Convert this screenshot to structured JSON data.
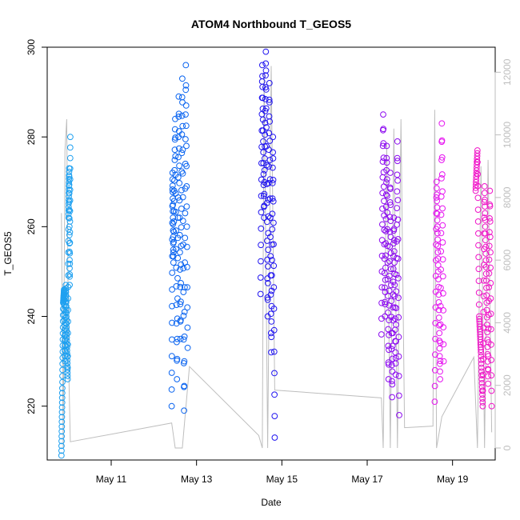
{
  "chart_data": {
    "type": "scatter",
    "title": "ATOM4 Northbound T_GEOS5",
    "xlabel": "Date",
    "ylabel": "T_GEOS5",
    "x_tick_labels": [
      "May 11",
      "May 13",
      "May 15",
      "May 17",
      "May 19"
    ],
    "y_tick_labels": [
      "220",
      "240",
      "260",
      "280",
      "300"
    ],
    "y2_tick_labels": [
      "0",
      "2000",
      "4000",
      "6000",
      "8000",
      "10000",
      "12000"
    ],
    "xlim": [
      "2018-05-09 12:00",
      "2018-05-20 00:00"
    ],
    "ylim": [
      208,
      300
    ],
    "y2lim": [
      0,
      12800
    ],
    "grid": false,
    "secondary_axis_color": "#bebebe",
    "series": [
      {
        "color": "#1ea0f0",
        "points": [
          [
            "2018-05-09 20:00",
            209
          ],
          [
            "2018-05-09 20:30",
            224
          ],
          [
            "2018-05-09 21:00",
            243
          ],
          [
            "2018-05-09 21:30",
            246
          ],
          [
            "2018-05-09 22:00",
            230
          ],
          [
            "2018-05-09 22:30",
            247
          ],
          [
            "2018-05-09 23:00",
            236
          ],
          [
            "2018-05-09 23:30",
            226
          ],
          [
            "2018-05-10 00:00",
            262
          ],
          [
            "2018-05-10 00:20",
            273
          ],
          [
            "2018-05-10 00:40",
            247
          ],
          [
            "2018-05-10 01:00",
            280
          ]
        ]
      },
      {
        "color": "#0a64f0",
        "points": [
          [
            "2018-05-12 10:00",
            220
          ],
          [
            "2018-05-12 10:30",
            272
          ],
          [
            "2018-05-12 11:00",
            252
          ],
          [
            "2018-05-12 12:00",
            284
          ],
          [
            "2018-05-12 13:00",
            226
          ],
          [
            "2018-05-12 14:00",
            289
          ],
          [
            "2018-05-12 15:00",
            235
          ],
          [
            "2018-05-12 16:00",
            293
          ],
          [
            "2018-05-12 17:00",
            219
          ],
          [
            "2018-05-12 18:00",
            296
          ],
          [
            "2018-05-12 19:00",
            233
          ]
        ]
      },
      {
        "color": "#2014f0",
        "points": [
          [
            "2018-05-14 12:00",
            245
          ],
          [
            "2018-05-14 13:00",
            296
          ],
          [
            "2018-05-14 14:00",
            262
          ],
          [
            "2018-05-14 15:00",
            299
          ],
          [
            "2018-05-14 16:00",
            240
          ],
          [
            "2018-05-14 17:00",
            292
          ],
          [
            "2018-05-14 18:00",
            232
          ],
          [
            "2018-05-14 19:00",
            280
          ],
          [
            "2018-05-14 20:00",
            213
          ]
        ]
      },
      {
        "color": "#8c0af0",
        "points": [
          [
            "2018-05-17 08:00",
            236
          ],
          [
            "2018-05-17 09:00",
            285
          ],
          [
            "2018-05-17 10:00",
            240
          ],
          [
            "2018-05-17 11:00",
            278
          ],
          [
            "2018-05-17 12:00",
            226
          ],
          [
            "2018-05-17 13:00",
            272
          ],
          [
            "2018-05-17 14:00",
            222
          ],
          [
            "2018-05-17 15:00",
            262
          ],
          [
            "2018-05-17 16:00",
            227
          ],
          [
            "2018-05-17 17:00",
            279
          ],
          [
            "2018-05-17 18:00",
            218
          ]
        ]
      },
      {
        "color": "#e614f0",
        "points": [
          [
            "2018-05-18 14:00",
            221
          ],
          [
            "2018-05-18 15:00",
            270
          ],
          [
            "2018-05-18 16:00",
            250
          ],
          [
            "2018-05-18 17:00",
            226
          ],
          [
            "2018-05-18 18:00",
            283
          ],
          [
            "2018-05-18 19:00",
            230
          ]
        ]
      },
      {
        "color": "#f014c8",
        "points": [
          [
            "2018-05-19 13:00",
            268
          ],
          [
            "2018-05-19 14:00",
            277
          ],
          [
            "2018-05-19 15:00",
            240
          ],
          [
            "2018-05-19 16:00",
            232
          ],
          [
            "2018-05-19 17:00",
            220
          ],
          [
            "2018-05-19 18:00",
            269
          ],
          [
            "2018-05-19 19:00",
            248
          ],
          [
            "2018-05-19 20:00",
            225
          ],
          [
            "2018-05-19 21:00",
            268
          ],
          [
            "2018-05-19 22:00",
            220
          ]
        ]
      }
    ],
    "secondary_line": {
      "color": "#bebebe",
      "points": [
        [
          "2018-05-09 20:00",
          7500
        ],
        [
          "2018-05-09 21:00",
          0
        ],
        [
          "2018-05-09 22:00",
          9500
        ],
        [
          "2018-05-09 23:00",
          10500
        ],
        [
          "2018-05-10 00:00",
          2800
        ],
        [
          "2018-05-10 01:00",
          200
        ],
        [
          "2018-05-12 10:00",
          800
        ],
        [
          "2018-05-12 12:00",
          0
        ],
        [
          "2018-05-12 14:00",
          0
        ],
        [
          "2018-05-12 16:00",
          0
        ],
        [
          "2018-05-12 20:00",
          2600
        ],
        [
          "2018-05-14 11:00",
          400
        ],
        [
          "2018-05-14 13:00",
          0
        ],
        [
          "2018-05-14 14:00",
          12000
        ],
        [
          "2018-05-14 16:00",
          0
        ],
        [
          "2018-05-14 18:00",
          12200
        ],
        [
          "2018-05-14 20:00",
          1850
        ],
        [
          "2018-05-17 08:00",
          1600
        ],
        [
          "2018-05-17 09:00",
          0
        ],
        [
          "2018-05-17 11:00",
          9700
        ],
        [
          "2018-05-17 13:00",
          0
        ],
        [
          "2018-05-17 15:00",
          10200
        ],
        [
          "2018-05-17 17:00",
          0
        ],
        [
          "2018-05-17 19:00",
          10500
        ],
        [
          "2018-05-17 21:00",
          650
        ],
        [
          "2018-05-18 13:00",
          700
        ],
        [
          "2018-05-18 14:00",
          10800
        ],
        [
          "2018-05-18 15:00",
          0
        ],
        [
          "2018-05-18 18:00",
          1000
        ],
        [
          "2018-05-19 12:00",
          2900
        ],
        [
          "2018-05-19 14:00",
          0
        ],
        [
          "2018-05-19 16:00",
          9000
        ],
        [
          "2018-05-19 18:00",
          0
        ],
        [
          "2018-05-19 20:00",
          9200
        ],
        [
          "2018-05-19 22:00",
          500
        ]
      ]
    }
  }
}
